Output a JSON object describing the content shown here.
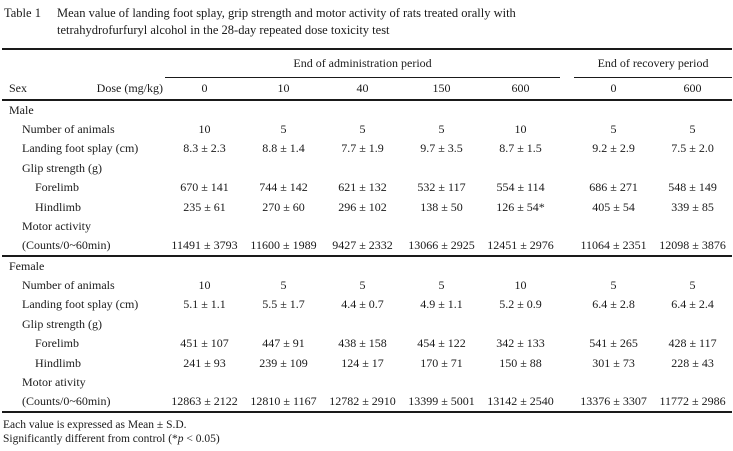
{
  "caption": {
    "table_label": "Table 1",
    "line1": "Mean value of landing foot splay, grip strength and motor activity of rats treated orally with",
    "line2": "tetrahydrofurfuryl alcohol in the 28-day repeated dose toxicity test"
  },
  "header": {
    "admin_period": "End of administration period",
    "recovery_period": "End of recovery period",
    "sex_label": "Sex",
    "dose_label": "Dose (mg/kg)",
    "doses": [
      "0",
      "10",
      "40",
      "150",
      "600",
      "0",
      "600"
    ]
  },
  "sections": [
    {
      "name": "Male",
      "rows": [
        {
          "label": "Number of animals",
          "indent": 1,
          "values": [
            "10",
            "5",
            "5",
            "5",
            "10",
            "5",
            "5"
          ]
        },
        {
          "label": "Landing foot splay (cm)",
          "indent": 1,
          "values": [
            "8.3 ± 2.3",
            "8.8 ± 1.4",
            "7.7 ± 1.9",
            "9.7 ± 3.5",
            "8.7 ± 1.5",
            "9.2 ± 2.9",
            "7.5 ± 2.0"
          ]
        },
        {
          "label": "Glip strength (g)",
          "indent": 1,
          "values": []
        },
        {
          "label": "Forelimb",
          "indent": 2,
          "values": [
            "670 ± 141",
            "744 ± 142",
            "621 ± 132",
            "532 ± 117",
            "554 ± 114",
            "686 ± 271",
            "548 ± 149"
          ]
        },
        {
          "label": "Hindlimb",
          "indent": 2,
          "values": [
            "235 ± 61",
            "270 ± 60",
            "296 ± 102",
            "138 ± 50",
            "126 ± 54*",
            "405 ± 54",
            "339 ± 85"
          ]
        },
        {
          "label": "Motor activity",
          "indent": 1,
          "values": []
        },
        {
          "label": "(Counts/0~60min)",
          "indent": 1,
          "values": [
            "11491 ± 3793",
            "11600 ± 1989",
            "9427 ± 2332",
            "13066 ± 2925",
            "12451 ± 2976",
            "11064 ± 2351",
            "12098 ± 3876"
          ]
        }
      ]
    },
    {
      "name": "Female",
      "rows": [
        {
          "label": "Number of animals",
          "indent": 1,
          "values": [
            "10",
            "5",
            "5",
            "5",
            "10",
            "5",
            "5"
          ]
        },
        {
          "label": "Landing foot splay (cm)",
          "indent": 1,
          "values": [
            "5.1 ± 1.1",
            "5.5 ± 1.7",
            "4.4 ± 0.7",
            "4.9 ± 1.1",
            "5.2 ± 0.9",
            "6.4 ± 2.8",
            "6.4 ± 2.4"
          ]
        },
        {
          "label": "Glip strength (g)",
          "indent": 1,
          "values": []
        },
        {
          "label": "Forelimb",
          "indent": 2,
          "values": [
            "451 ± 107",
            "447 ± 91",
            "438 ± 158",
            "454 ± 122",
            "342 ± 133",
            "541 ± 265",
            "428 ± 117"
          ]
        },
        {
          "label": "Hindlimb",
          "indent": 2,
          "values": [
            "241 ± 93",
            "239 ± 109",
            "124 ± 17",
            "170 ± 71",
            "150 ± 88",
            "301 ± 73",
            "228 ± 43"
          ]
        },
        {
          "label": "Motor ativity",
          "indent": 1,
          "values": []
        },
        {
          "label": "(Counts/0~60min)",
          "indent": 1,
          "values": [
            "12863 ± 2122",
            "12810 ± 1167",
            "12782 ± 2910",
            "13399 ± 5001",
            "13142 ± 2540",
            "13376 ± 3307",
            "11772 ± 2986"
          ]
        }
      ]
    }
  ],
  "footnotes": {
    "line1": "Each value is expressed as Mean ± S.D.",
    "line2_pre": "Significantly different from control (*",
    "line2_p": "p",
    "line2_post": " < 0.05)"
  },
  "colors": {
    "text": "#1a1a1a",
    "rule": "#1a1a1a",
    "background": "#ffffff"
  }
}
